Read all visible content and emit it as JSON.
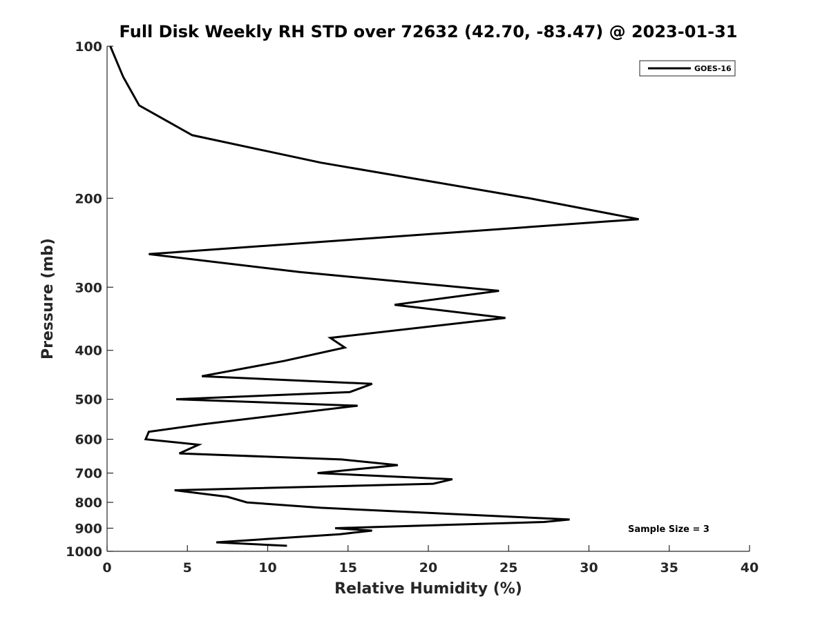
{
  "chart_data": {
    "type": "line",
    "title": "Full Disk Weekly RH STD over 72632 (42.70, -83.47) @ 2023-01-31",
    "xlabel": "Relative Humidity (%)",
    "ylabel": "Pressure (mb)",
    "xlim": [
      0,
      40
    ],
    "ylim": [
      100,
      1000
    ],
    "yscale": "log",
    "y_reversed": true,
    "grid": false,
    "x_ticks": [
      "0",
      "5",
      "10",
      "15",
      "20",
      "25",
      "30",
      "35",
      "40"
    ],
    "y_ticks": [
      "100",
      "200",
      "300",
      "400",
      "500",
      "600",
      "700",
      "800",
      "900",
      "1000"
    ],
    "legend": {
      "position": "top-right",
      "entries": [
        "GOES-16"
      ]
    },
    "annotation": "Sample Size = 3",
    "series": [
      {
        "name": "GOES-16",
        "color": "#000000",
        "x": [
          0.2,
          1.0,
          2.0,
          5.3,
          13.3,
          26.3,
          33.1,
          2.6,
          12.0,
          24.4,
          17.9,
          24.8,
          13.9,
          14.8,
          11.0,
          5.9,
          16.5,
          15.1,
          4.3,
          15.6,
          6.0,
          2.6,
          2.4,
          5.7,
          4.5,
          14.6,
          18.1,
          13.1,
          21.5,
          20.3,
          4.2,
          7.5,
          8.7,
          13.3,
          28.8,
          27.2,
          14.2,
          16.5,
          14.5,
          6.8,
          11.2
        ],
        "y": [
          100,
          115,
          131,
          150,
          170,
          200,
          220,
          258,
          280,
          305,
          325,
          345,
          378,
          395,
          420,
          450,
          466,
          484,
          500,
          515,
          560,
          580,
          600,
          615,
          640,
          658,
          675,
          700,
          720,
          735,
          757,
          780,
          800,
          820,
          865,
          875,
          900,
          910,
          925,
          960,
          975
        ]
      }
    ]
  }
}
